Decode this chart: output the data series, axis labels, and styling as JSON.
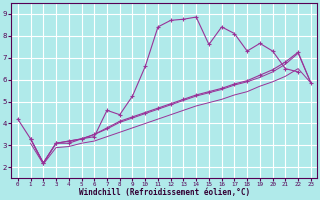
{
  "xlabel": "Windchill (Refroidissement éolien,°C)",
  "ylabel": "",
  "background_color": "#b0eaea",
  "grid_color": "#ffffff",
  "line_color": "#993399",
  "x_data": [
    0,
    1,
    2,
    3,
    4,
    5,
    6,
    7,
    8,
    9,
    10,
    11,
    12,
    13,
    14,
    15,
    16,
    17,
    18,
    19,
    20,
    21,
    22,
    23
  ],
  "line1_y": [
    4.2,
    3.3,
    2.2,
    3.1,
    3.1,
    3.3,
    3.4,
    4.6,
    4.4,
    5.25,
    6.6,
    8.4,
    8.7,
    8.75,
    8.85,
    7.6,
    8.4,
    8.1,
    7.3,
    7.65,
    7.3,
    6.5,
    6.35,
    null
  ],
  "line2_y": [
    null,
    3.3,
    2.2,
    3.1,
    3.2,
    3.3,
    3.5,
    3.8,
    4.1,
    4.3,
    4.5,
    4.7,
    4.9,
    5.1,
    5.3,
    5.45,
    5.6,
    5.8,
    5.95,
    6.2,
    6.45,
    6.8,
    7.25,
    5.85
  ],
  "line3_y": [
    null,
    3.3,
    2.2,
    3.1,
    3.2,
    3.3,
    3.5,
    3.75,
    4.05,
    4.25,
    4.45,
    4.65,
    4.85,
    5.05,
    5.25,
    5.4,
    5.55,
    5.75,
    5.9,
    6.1,
    6.35,
    6.7,
    7.2,
    5.85
  ],
  "line4_y": [
    null,
    3.1,
    2.15,
    2.9,
    2.95,
    3.1,
    3.2,
    3.4,
    3.6,
    3.8,
    4.0,
    4.2,
    4.4,
    4.6,
    4.8,
    4.95,
    5.1,
    5.3,
    5.45,
    5.7,
    5.9,
    6.15,
    6.5,
    5.85
  ],
  "xlim": [
    -0.5,
    23.5
  ],
  "ylim": [
    1.5,
    9.5
  ],
  "yticks": [
    2,
    3,
    4,
    5,
    6,
    7,
    8,
    9
  ],
  "xticks": [
    0,
    1,
    2,
    3,
    4,
    5,
    6,
    7,
    8,
    9,
    10,
    11,
    12,
    13,
    14,
    15,
    16,
    17,
    18,
    19,
    20,
    21,
    22,
    23
  ]
}
